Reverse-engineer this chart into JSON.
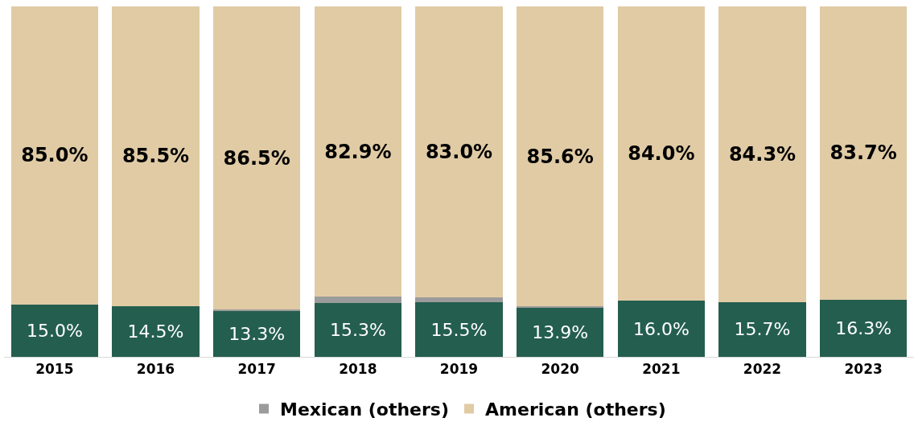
{
  "chart_data": {
    "type": "bar",
    "stacked": true,
    "categories": [
      "2015",
      "2016",
      "2017",
      "2018",
      "2019",
      "2020",
      "2021",
      "2022",
      "2023"
    ],
    "series": [
      {
        "color": "#245e4f",
        "values": [
          15.0,
          14.5,
          13.3,
          15.3,
          15.5,
          13.9,
          16.0,
          15.7,
          16.3
        ],
        "value_labels": [
          "15.0%",
          "14.5%",
          "13.3%",
          "15.3%",
          "15.5%",
          "13.9%",
          "16.0%",
          "15.7%",
          "16.3%"
        ]
      },
      {
        "name": "Mexican (others)",
        "color": "#9b9b9b",
        "values": [
          0,
          0,
          0.2,
          1.8,
          1.5,
          0.5,
          0,
          0,
          0
        ]
      },
      {
        "name": "American (others)",
        "color": "#e0cba5",
        "values": [
          85.0,
          85.5,
          86.5,
          82.9,
          83.0,
          85.6,
          84.0,
          84.3,
          83.7
        ],
        "value_labels": [
          "85.0%",
          "85.5%",
          "86.5%",
          "82.9%",
          "83.0%",
          "85.6%",
          "84.0%",
          "84.3%",
          "83.7%"
        ]
      }
    ],
    "ylim": [
      0,
      100
    ],
    "tick_labels": "x",
    "legend": "bottom"
  }
}
